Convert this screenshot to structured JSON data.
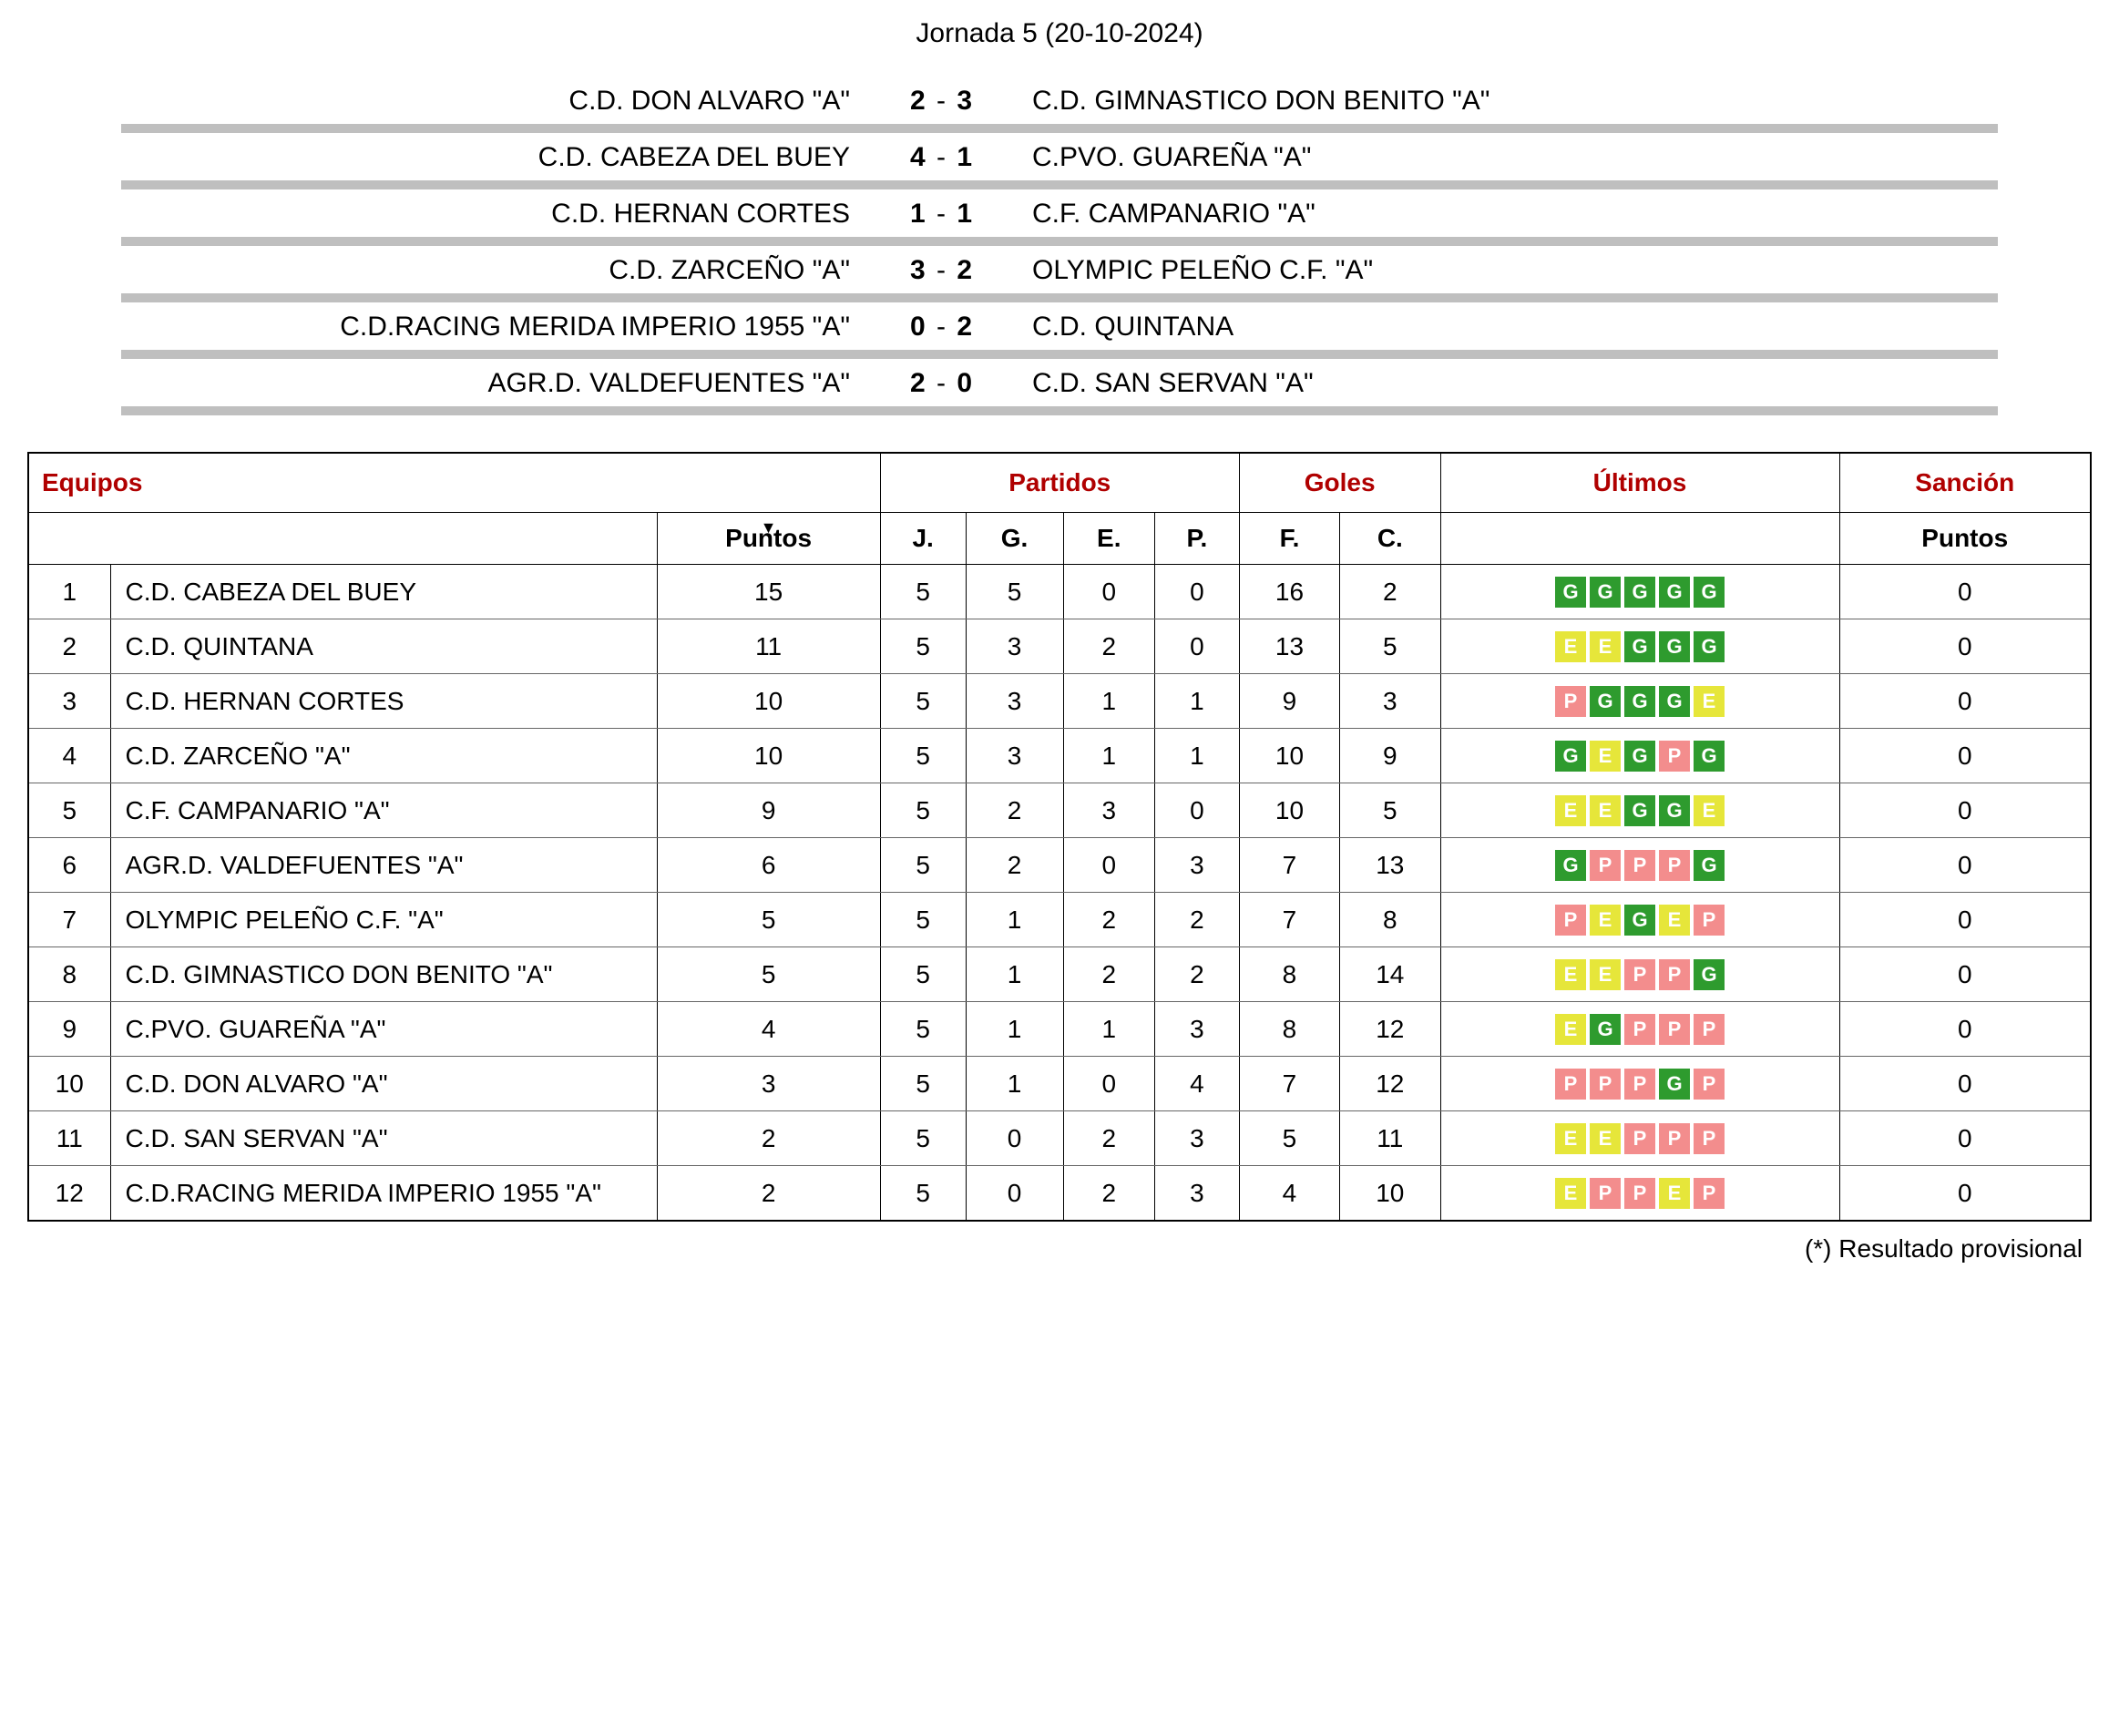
{
  "jornada_title": "Jornada 5 (20-10-2024)",
  "matches": [
    {
      "home": "C.D. DON ALVARO \"A\"",
      "hs": "2",
      "as": "3",
      "away": "C.D. GIMNASTICO DON BENITO \"A\""
    },
    {
      "home": "C.D. CABEZA DEL BUEY",
      "hs": "4",
      "as": "1",
      "away": "C.PVO. GUAREÑA \"A\""
    },
    {
      "home": "C.D. HERNAN CORTES",
      "hs": "1",
      "as": "1",
      "away": "C.F. CAMPANARIO \"A\""
    },
    {
      "home": "C.D. ZARCEÑO \"A\"",
      "hs": "3",
      "as": "2",
      "away": "OLYMPIC PELEÑO C.F. \"A\""
    },
    {
      "home": "C.D.RACING MERIDA IMPERIO 1955 \"A\"",
      "hs": "0",
      "as": "2",
      "away": "C.D. QUINTANA"
    },
    {
      "home": "AGR.D. VALDEFUENTES \"A\"",
      "hs": "2",
      "as": "0",
      "away": "C.D. SAN SERVAN \"A\""
    }
  ],
  "headers": {
    "equipos": "Equipos",
    "partidos": "Partidos",
    "goles": "Goles",
    "ultimos": "Últimos",
    "sancion": "Sanción",
    "puntos": "Puntos",
    "j": "J.",
    "g": "G.",
    "e": "E.",
    "p": "P.",
    "f": "F.",
    "c": "C.",
    "sancion_puntos": "Puntos"
  },
  "rows": [
    {
      "pos": "1",
      "team": "C.D. CABEZA DEL BUEY",
      "pts": "15",
      "j": "5",
      "g": "5",
      "e": "0",
      "p": "0",
      "f": "16",
      "c": "2",
      "form": [
        "G",
        "G",
        "G",
        "G",
        "G"
      ],
      "san": "0"
    },
    {
      "pos": "2",
      "team": "C.D. QUINTANA",
      "pts": "11",
      "j": "5",
      "g": "3",
      "e": "2",
      "p": "0",
      "f": "13",
      "c": "5",
      "form": [
        "E",
        "E",
        "G",
        "G",
        "G"
      ],
      "san": "0"
    },
    {
      "pos": "3",
      "team": "C.D. HERNAN CORTES",
      "pts": "10",
      "j": "5",
      "g": "3",
      "e": "1",
      "p": "1",
      "f": "9",
      "c": "3",
      "form": [
        "P",
        "G",
        "G",
        "G",
        "E"
      ],
      "san": "0"
    },
    {
      "pos": "4",
      "team": "C.D. ZARCEÑO \"A\"",
      "pts": "10",
      "j": "5",
      "g": "3",
      "e": "1",
      "p": "1",
      "f": "10",
      "c": "9",
      "form": [
        "G",
        "E",
        "G",
        "P",
        "G"
      ],
      "san": "0"
    },
    {
      "pos": "5",
      "team": "C.F. CAMPANARIO \"A\"",
      "pts": "9",
      "j": "5",
      "g": "2",
      "e": "3",
      "p": "0",
      "f": "10",
      "c": "5",
      "form": [
        "E",
        "E",
        "G",
        "G",
        "E"
      ],
      "san": "0"
    },
    {
      "pos": "6",
      "team": "AGR.D. VALDEFUENTES \"A\"",
      "pts": "6",
      "j": "5",
      "g": "2",
      "e": "0",
      "p": "3",
      "f": "7",
      "c": "13",
      "form": [
        "G",
        "P",
        "P",
        "P",
        "G"
      ],
      "san": "0"
    },
    {
      "pos": "7",
      "team": "OLYMPIC PELEÑO C.F. \"A\"",
      "pts": "5",
      "j": "5",
      "g": "1",
      "e": "2",
      "p": "2",
      "f": "7",
      "c": "8",
      "form": [
        "P",
        "E",
        "G",
        "E",
        "P"
      ],
      "san": "0"
    },
    {
      "pos": "8",
      "team": "C.D. GIMNASTICO DON BENITO \"A\"",
      "pts": "5",
      "j": "5",
      "g": "1",
      "e": "2",
      "p": "2",
      "f": "8",
      "c": "14",
      "form": [
        "E",
        "E",
        "P",
        "P",
        "G"
      ],
      "san": "0"
    },
    {
      "pos": "9",
      "team": "C.PVO. GUAREÑA \"A\"",
      "pts": "4",
      "j": "5",
      "g": "1",
      "e": "1",
      "p": "3",
      "f": "8",
      "c": "12",
      "form": [
        "E",
        "G",
        "P",
        "P",
        "P"
      ],
      "san": "0"
    },
    {
      "pos": "10",
      "team": "C.D. DON ALVARO \"A\"",
      "pts": "3",
      "j": "5",
      "g": "1",
      "e": "0",
      "p": "4",
      "f": "7",
      "c": "12",
      "form": [
        "P",
        "P",
        "P",
        "G",
        "P"
      ],
      "san": "0"
    },
    {
      "pos": "11",
      "team": "C.D. SAN SERVAN \"A\"",
      "pts": "2",
      "j": "5",
      "g": "0",
      "e": "2",
      "p": "3",
      "f": "5",
      "c": "11",
      "form": [
        "E",
        "E",
        "P",
        "P",
        "P"
      ],
      "san": "0"
    },
    {
      "pos": "12",
      "team": "C.D.RACING MERIDA IMPERIO 1955 \"A\"",
      "pts": "2",
      "j": "5",
      "g": "0",
      "e": "2",
      "p": "3",
      "f": "4",
      "c": "10",
      "form": [
        "E",
        "P",
        "P",
        "E",
        "P"
      ],
      "san": "0"
    }
  ],
  "footnote": "(*) Resultado provisional",
  "colors": {
    "win": "#2e9b2e",
    "draw": "#e6e63a",
    "loss": "#f38d8d",
    "header_text": "#b00000",
    "divider": "#bfbfbf"
  }
}
